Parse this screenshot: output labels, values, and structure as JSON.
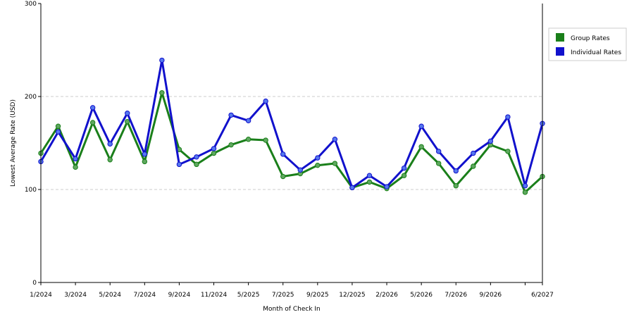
{
  "chart_data": {
    "type": "line",
    "title": "",
    "xlabel": "Month of Check In",
    "ylabel": "Lowest Average Rate (USD)",
    "ylim": [
      0,
      300
    ],
    "yticks": [
      "0",
      "100",
      "200",
      "300"
    ],
    "x_tick_labels": [
      "1/2024",
      "3/2024",
      "5/2024",
      "7/2024",
      "9/2024",
      "11/2024",
      "5/2025",
      "7/2025",
      "9/2025",
      "12/2025",
      "2/2026",
      "5/2026",
      "7/2026",
      "9/2026",
      "6/2027"
    ],
    "grid": "horizontal dashed at 100 and 200",
    "legend_position": "top-right",
    "series": [
      {
        "name": "Group Rates",
        "color": "#1a7f1a",
        "marker_color": "#5fa85f",
        "values": [
          139,
          168,
          124,
          172,
          132,
          173,
          130,
          204,
          143,
          127,
          139,
          148,
          154,
          153,
          114,
          117,
          126,
          128,
          102,
          108,
          101,
          115,
          146,
          128,
          104,
          125,
          148,
          141,
          97,
          114
        ]
      },
      {
        "name": "Individual Rates",
        "color": "#1111cc",
        "marker_color": "#5577ee",
        "values": [
          130,
          162,
          133,
          188,
          149,
          182,
          138,
          239,
          127,
          135,
          144,
          180,
          174,
          195,
          138,
          121,
          134,
          154,
          102,
          115,
          103,
          123,
          168,
          141,
          120,
          139,
          152,
          178,
          104,
          171
        ]
      }
    ]
  }
}
